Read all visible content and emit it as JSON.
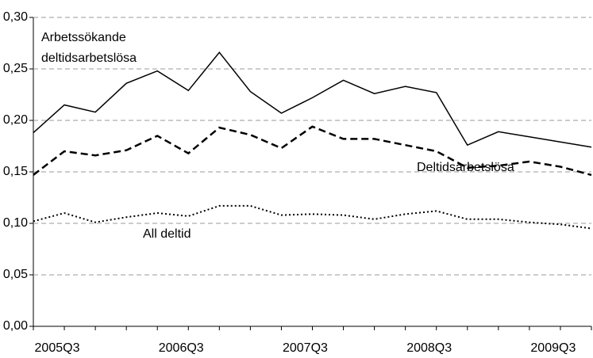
{
  "chart_data": {
    "type": "line",
    "categories": [
      "2005Q3",
      null,
      null,
      null,
      "2006Q3",
      null,
      null,
      null,
      "2007Q3",
      null,
      null,
      null,
      "2008Q3",
      null,
      null,
      null,
      "2009Q3",
      null,
      null
    ],
    "series": [
      {
        "color": "#000000",
        "style": "solid",
        "values": [
          0.188,
          0.215,
          0.208,
          0.236,
          0.248,
          0.229,
          0.266,
          0.228,
          0.207,
          0.222,
          0.239,
          0.226,
          0.233,
          0.227,
          0.176,
          0.189,
          0.184,
          0.179,
          0.174
        ]
      },
      {
        "color": "#000000",
        "style": "dashed",
        "values": [
          0.147,
          0.17,
          0.166,
          0.171,
          0.185,
          0.168,
          0.193,
          0.186,
          0.173,
          0.194,
          0.182,
          0.182,
          0.176,
          0.17,
          0.154,
          0.156,
          0.16,
          0.155,
          0.147
        ]
      },
      {
        "color": "#000000",
        "style": "dotted",
        "values": [
          0.102,
          0.11,
          0.101,
          0.106,
          0.11,
          0.107,
          0.117,
          0.117,
          0.108,
          0.109,
          0.108,
          0.104,
          0.109,
          0.112,
          0.104,
          0.104,
          0.101,
          0.099,
          0.095
        ]
      }
    ],
    "annotations": [
      {
        "text": "Arbetssökande"
      },
      {
        "text": "deltidsarbetslösa"
      },
      {
        "text": "Deltidsarbetslösa"
      },
      {
        "text": "All deltid"
      }
    ],
    "ylim": [
      0,
      0.3
    ],
    "yticks": [
      {
        "value": 0,
        "label": "0,00"
      },
      {
        "value": 0.05,
        "label": "0,05"
      },
      {
        "value": 0.1,
        "label": "0,10"
      },
      {
        "value": 0.15,
        "label": "0,15"
      },
      {
        "value": 0.2,
        "label": "0,20"
      },
      {
        "value": 0.25,
        "label": "0,25"
      },
      {
        "value": 0.3,
        "label": "0,30"
      }
    ],
    "grid": true
  }
}
